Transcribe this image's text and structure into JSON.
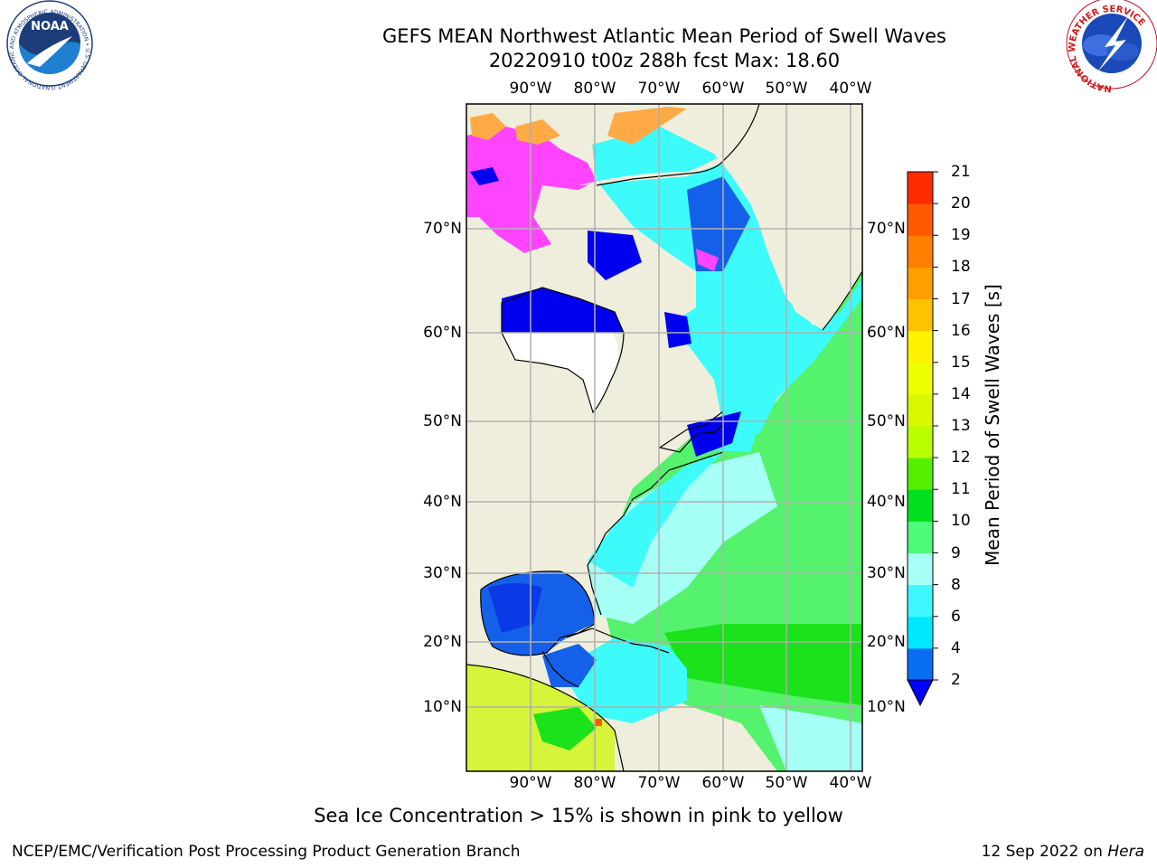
{
  "title": {
    "line1": "GEFS MEAN Northwest Atlantic Mean Period of Swell Waves",
    "line2": "20220910 t00z 288h fcst   Max: 18.60"
  },
  "axes": {
    "longitude_labels": [
      "90°W",
      "80°W",
      "70°W",
      "60°W",
      "50°W",
      "40°W"
    ],
    "latitude_labels": [
      "70°N",
      "60°N",
      "50°N",
      "40°N",
      "30°N",
      "20°N",
      "10°N"
    ]
  },
  "colorbar": {
    "label": "Mean Period of Swell Waves [s]",
    "ticks": [
      "2",
      "4",
      "6",
      "8",
      "9",
      "10",
      "11",
      "12",
      "13",
      "14",
      "15",
      "16",
      "17",
      "18",
      "19",
      "20",
      "21"
    ],
    "colors": [
      "#0a6ef5",
      "#00e8ff",
      "#3ff8ff",
      "#a8fff5",
      "#4dfa7a",
      "#00e01e",
      "#55f000",
      "#b8ff00",
      "#d9f700",
      "#eeff00",
      "#fff200",
      "#ffc200",
      "#ffa000",
      "#ff8000",
      "#ff5a00",
      "#ff2c00"
    ],
    "extend_color": "#0000ff"
  },
  "map_colors": {
    "land": "#efeedc",
    "deep_blue": "#0000ee",
    "mid_blue": "#1560e8",
    "cyan": "#3dfbfb",
    "light_cyan": "#a6fff4",
    "green": "#55f26d",
    "bright_green": "#1be21b",
    "yellow_green": "#d6f53a",
    "ice_pink": "#ff44ff",
    "ice_orange": "#ffaa44"
  },
  "subtitle": "Sea Ice Concentration > 15% is shown in pink to yellow",
  "footer": {
    "left": "NCEP/EMC/Verification Post Processing Product Generation Branch",
    "date": "12 Sep 2022 on",
    "host": "Hera"
  },
  "logos": {
    "noaa": "NOAA",
    "noaa_ring": "NATIONAL OCEANIC AND ATMOSPHERIC ADMINISTRATION • U.S. DEPARTMENT OF COMMERCE •",
    "nws_ring": "NATIONAL WEATHER SERVICE"
  }
}
